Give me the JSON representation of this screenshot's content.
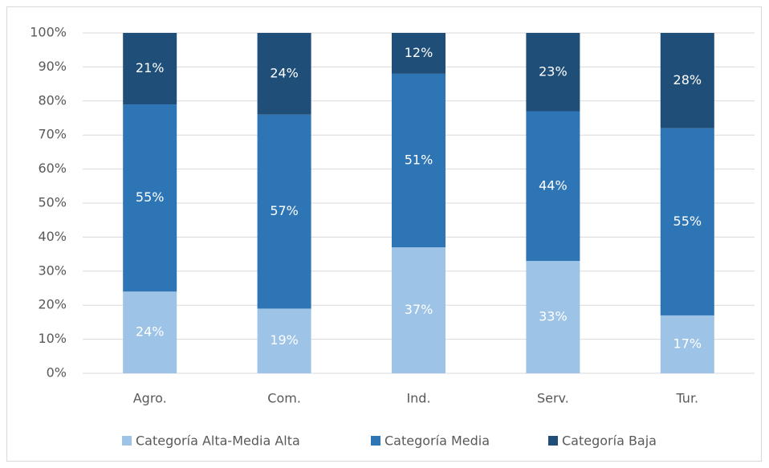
{
  "chart_data": {
    "type": "stacked_bar",
    "categories": [
      "Agro.",
      "Com.",
      "Ind.",
      "Serv.",
      "Tur."
    ],
    "series": [
      {
        "name": "Categoría Alta-Media Alta",
        "color": "#9dc3e6",
        "values": [
          24,
          19,
          37,
          33,
          17
        ],
        "value_labels": [
          "24%",
          "19%",
          "37%",
          "33%",
          "17%"
        ]
      },
      {
        "name": "Categoría Media",
        "color": "#2e75b6",
        "values": [
          55,
          57,
          51,
          44,
          55
        ],
        "value_labels": [
          "55%",
          "57%",
          "51%",
          "44%",
          "55%"
        ]
      },
      {
        "name": "Categoría Baja",
        "color": "#1f4e79",
        "values": [
          21,
          24,
          12,
          23,
          28
        ],
        "value_labels": [
          "21%",
          "24%",
          "12%",
          "23%",
          "28%"
        ]
      }
    ],
    "ylim": [
      0,
      100
    ],
    "yticks": [
      {
        "value": 0,
        "label": "0%"
      },
      {
        "value": 10,
        "label": "10%"
      },
      {
        "value": 20,
        "label": "20%"
      },
      {
        "value": 30,
        "label": "30%"
      },
      {
        "value": 40,
        "label": "40%"
      },
      {
        "value": 50,
        "label": "50%"
      },
      {
        "value": 60,
        "label": "60%"
      },
      {
        "value": 70,
        "label": "70%"
      },
      {
        "value": 80,
        "label": "80%"
      },
      {
        "value": 90,
        "label": "90%"
      },
      {
        "value": 100,
        "label": "100%"
      }
    ],
    "grid": true,
    "legend": "bottom"
  }
}
